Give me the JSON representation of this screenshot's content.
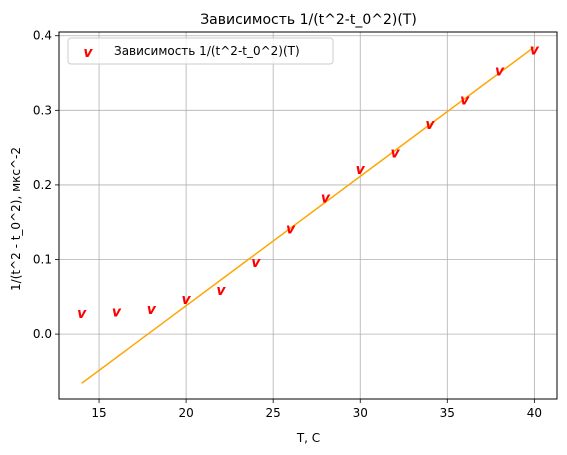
{
  "chart_data": {
    "type": "scatter",
    "title": "Зависимость 1/(t^2-t_0^2)(T)",
    "xlabel": "T, C",
    "ylabel": "1/(t^2 - t_0^2), мкс^-2",
    "xlim": [
      12.7,
      41.3
    ],
    "ylim": [
      -0.087,
      0.405
    ],
    "xticks": [
      15,
      20,
      25,
      30,
      35,
      40
    ],
    "yticks": [
      0.0,
      0.1,
      0.2,
      0.3,
      0.4
    ],
    "ytick_labels": [
      "0.0",
      "0.1",
      "0.2",
      "0.3",
      "0.4"
    ],
    "grid": true,
    "legend_position": "top-left",
    "series": [
      {
        "name": "Зависимость 1/(t^2-t_0^2)(T)",
        "type": "scatter",
        "marker": "v",
        "color": "#ff0000",
        "x": [
          14,
          16,
          18,
          20,
          22,
          24,
          26,
          28,
          30,
          32,
          34,
          36,
          38,
          40
        ],
        "y": [
          0.027,
          0.029,
          0.032,
          0.046,
          0.058,
          0.095,
          0.14,
          0.182,
          0.22,
          0.242,
          0.28,
          0.313,
          0.352,
          0.38
        ]
      },
      {
        "type": "line",
        "color": "#ffa500",
        "x": [
          14,
          40
        ],
        "y": [
          -0.066,
          0.385
        ]
      }
    ]
  }
}
